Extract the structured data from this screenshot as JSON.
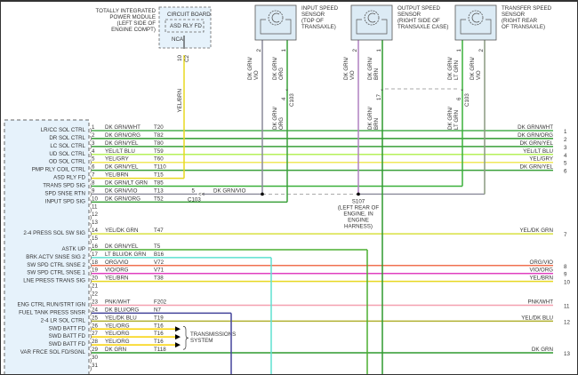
{
  "module": {
    "pins": [
      {
        "pin": "1",
        "label": "LR/CC SOL CTRL",
        "wire": "DK GRN/WHT",
        "circuit": "T20",
        "right": "1",
        "color": "#4caf50"
      },
      {
        "pin": "2",
        "label": "DR SOL CTRL",
        "wire": "DK GRN/ORG",
        "circuit": "T82",
        "right": "2",
        "color": "#2e9a2e"
      },
      {
        "pin": "3",
        "label": "LC SOL CTRL",
        "wire": "DK GRN/YEL",
        "circuit": "T80",
        "right": "3",
        "color": "#3aa03a"
      },
      {
        "pin": "4",
        "label": "UD SOL CTRL",
        "wire": "YEL/LT BLU",
        "circuit": "T59",
        "right": "4",
        "color": "#b6f05a"
      },
      {
        "pin": "5",
        "label": "OD SOL CTRL",
        "wire": "YEL/GRY",
        "circuit": "T60",
        "right": "5",
        "color": "#f0e85a"
      },
      {
        "pin": "6",
        "label": "PMP RLY COIL CTRL",
        "wire": "DK GRN/YEL",
        "circuit": "T110",
        "right": "6",
        "color": "#3aa03a"
      },
      {
        "pin": "7",
        "label": "ASD RLY FD",
        "wire": "YEL/BRN",
        "circuit": "T15",
        "right": "",
        "color": "#e8d820"
      },
      {
        "pin": "8",
        "label": "TRANS SPD SIG",
        "wire": "DK GRN/LT GRN",
        "circuit": "T85",
        "right": "",
        "color": "#3ab03a"
      },
      {
        "pin": "9",
        "label": "SPD SNSE RTN",
        "wire": "DK GRN/VIO",
        "circuit": "T13",
        "right": "",
        "color": "#8a8a9a"
      },
      {
        "pin": "10",
        "label": "INPUT SPD SIG",
        "wire": "DK GRN/ORG",
        "circuit": "T52",
        "right": "",
        "color": "#3aa03a"
      },
      {
        "pin": "11",
        "label": "",
        "wire": "",
        "circuit": "",
        "right": "",
        "color": ""
      },
      {
        "pin": "12",
        "label": "",
        "wire": "",
        "circuit": "",
        "right": "",
        "color": ""
      },
      {
        "pin": "13",
        "label": "",
        "wire": "",
        "circuit": "",
        "right": "",
        "color": ""
      },
      {
        "pin": "14",
        "label": "2-4 PRESS SOL SW SIG",
        "wire": "YEL/DK GRN",
        "circuit": "T47",
        "right": "7",
        "color": "#d8e040"
      },
      {
        "pin": "15",
        "label": "",
        "wire": "",
        "circuit": "",
        "right": "",
        "color": ""
      },
      {
        "pin": "16",
        "label": "ASTK UP",
        "wire": "DK GRN/YEL",
        "circuit": "T5",
        "right": "",
        "color": "#4caf30"
      },
      {
        "pin": "17",
        "label": "BRK ACTV SNSE SIG 2",
        "wire": "LT BLU/DK GRN",
        "circuit": "B16",
        "right": "",
        "color": "#5ee0d0"
      },
      {
        "pin": "18",
        "label": "SW SPD CTRL SNSE 2",
        "wire": "ORG/VIO",
        "circuit": "V72",
        "right": "8",
        "color": "#f07050"
      },
      {
        "pin": "19",
        "label": "SW SPD CTRL SNSE 1",
        "wire": "VIO/ORG",
        "circuit": "V71",
        "right": "9",
        "color": "#e040c0"
      },
      {
        "pin": "20",
        "label": "LNE PRESS TRANS SIG",
        "wire": "YEL/BRN",
        "circuit": "T38",
        "right": "10",
        "color": "#e8d820"
      },
      {
        "pin": "21",
        "label": "",
        "wire": "",
        "circuit": "",
        "right": "",
        "color": ""
      },
      {
        "pin": "22",
        "label": "",
        "wire": "",
        "circuit": "",
        "right": "",
        "color": ""
      },
      {
        "pin": "23",
        "label": "ENG CTRL RUN/STRT IGN",
        "wire": "PNK/WHT",
        "circuit": "F202",
        "right": "11",
        "color": "#f4a0b0"
      },
      {
        "pin": "24",
        "label": "FUEL TANK PRESS SNSR",
        "wire": "DK BLU/ORG",
        "circuit": "N7",
        "right": "",
        "color": "#44449a"
      },
      {
        "pin": "25",
        "label": "2-4 LR SOL CTRL",
        "wire": "YEL/DK BLU",
        "circuit": "T19",
        "right": "12",
        "color": "#b0b030"
      },
      {
        "pin": "26",
        "label": "SWD BATT FD",
        "wire": "YEL/ORG",
        "circuit": "T16",
        "right": "",
        "color": "#f8d000"
      },
      {
        "pin": "27",
        "label": "SWD BATT FD",
        "wire": "YEL/ORG",
        "circuit": "T16",
        "right": "",
        "color": "#f8d000"
      },
      {
        "pin": "28",
        "label": "SWD BATT FD",
        "wire": "YEL/ORG",
        "circuit": "T16",
        "right": "",
        "color": "#f8d000"
      },
      {
        "pin": "29",
        "label": "VAR FRCE SOL FD/SGNL",
        "wire": "DK GRN",
        "circuit": "T118",
        "right": "13",
        "color": "#2e9a2e"
      },
      {
        "pin": "30",
        "label": "",
        "wire": "",
        "circuit": "",
        "right": "",
        "color": ""
      },
      {
        "pin": "31",
        "label": "",
        "wire": "",
        "circuit": "",
        "right": "",
        "color": ""
      }
    ],
    "right_wire_labels": {
      "1": "DK GRN/WHT",
      "2": "DK GRN/ORG",
      "3": "DK GRN/YEL",
      "4": "YEL/LT BLU",
      "5": "YEL/GRY",
      "6": "DK GRN/YEL",
      "14": "YEL/DK GRN",
      "18": "ORG/VIO",
      "19": "VIO/ORG",
      "20": "YEL/BRN",
      "23": "PNK/WHT",
      "25": "YEL/DK BLU",
      "29": "DK GRN"
    }
  },
  "tipm": {
    "title": [
      "TOTALLY INTEGRATED",
      "POWER MODULE",
      "(LEFT SIDE OF",
      "ENGINE COMPT)"
    ],
    "board": "CIRCUIT BOARD",
    "relay": "ASD RLY FD",
    "nca": "NCA",
    "pin": "10",
    "connector": "C2",
    "wire": "YEL/BRN"
  },
  "sensors": [
    {
      "name": [
        "INPUT SPEED",
        "SENSOR",
        "(TOP OF",
        "TRANSAXLE)"
      ],
      "pins": [
        {
          "pin": "2",
          "wire": [
            "DK GRN/",
            "VIO"
          ]
        },
        {
          "pin": "1",
          "wire": [
            "DK GRN/",
            "ORG"
          ],
          "conn_pin": "4",
          "conn": "C103",
          "wire2": [
            "DK GRN/",
            "ORG"
          ]
        }
      ]
    },
    {
      "name": [
        "OUTPUT SPEED",
        "SENSOR",
        "(RIGHT SIDE OF",
        "TRANSAXLE CASE)"
      ],
      "pins": [
        {
          "pin": "2",
          "wire": [
            "DK GRN/",
            "VIO"
          ]
        },
        {
          "pin": "1",
          "wire": [
            "DK GRN/",
            "BRN"
          ],
          "conn_pin": "17",
          "conn": "",
          "wire2": [
            "DK GRN/",
            "BRN"
          ]
        }
      ]
    },
    {
      "name": [
        "TRANSFER SPEED",
        "SENSOR",
        "(RIGHT REAR",
        "OF TRANSAXLE)"
      ],
      "pins": [
        {
          "pin": "1",
          "wire": [
            "DK GRN/",
            "LT GRN"
          ],
          "conn_pin": "6",
          "conn": "C103",
          "wire2": [
            "DK GRN/",
            "LT GRN"
          ]
        },
        {
          "pin": "2",
          "wire": [
            "DK GRN/",
            "VIO"
          ]
        }
      ]
    }
  ],
  "c103_inline": {
    "pin": "5",
    "conn": "C103",
    "wire": "DK GRN/VIO"
  },
  "splice": {
    "id": "S107",
    "location": [
      "(LEFT REAR OF",
      "ENGINE, IN",
      "ENGINE",
      "HARNESS)"
    ]
  },
  "transmission_note": [
    "TRANSMISSIONS",
    "SYSTEM"
  ]
}
